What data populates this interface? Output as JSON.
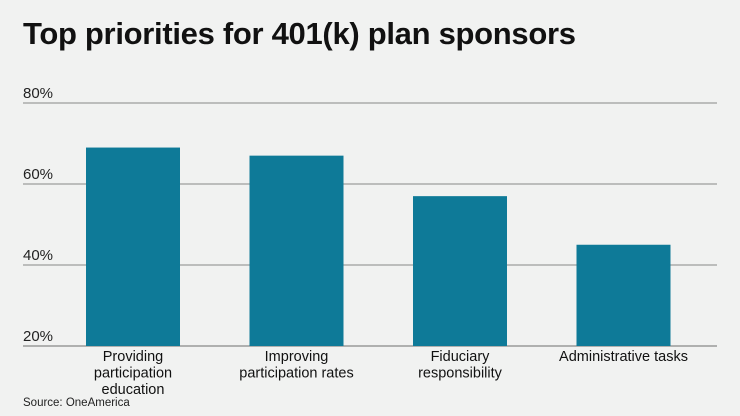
{
  "chart_data": {
    "type": "bar",
    "title": "Top priorities for 401(k) plan sponsors",
    "categories": [
      "Providing participation education",
      "Improving participation rates",
      "Fiduciary responsibility",
      "Administrative tasks"
    ],
    "category_lines": [
      [
        "Providing",
        "participation",
        "education"
      ],
      [
        "Improving",
        "participation rates"
      ],
      [
        "Fiduciary",
        "responsibility"
      ],
      [
        "Administrative tasks"
      ]
    ],
    "values": [
      69,
      67,
      57,
      45
    ],
    "ylim": [
      20,
      80
    ],
    "yticks": [
      20,
      40,
      60,
      80
    ],
    "ytick_labels": [
      "20%",
      "40%",
      "60%",
      "80%"
    ],
    "grid": true,
    "bar_color": "#0e7a98",
    "source": "Source: OneAmerica"
  }
}
